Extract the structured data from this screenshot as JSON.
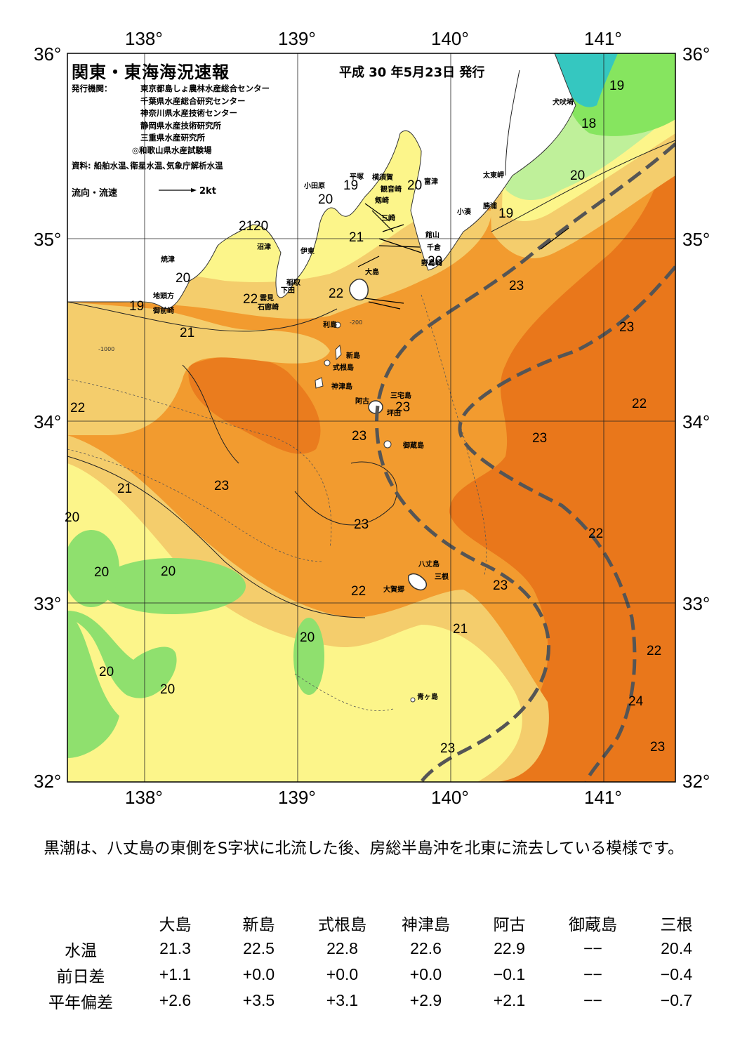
{
  "map": {
    "title": "関東・東海海況速報",
    "issued": "平成 30 年5月23日 発行",
    "agency_label": "発行機関：",
    "agencies": [
      "東京都島しょ農林水産総合センター",
      "千葉県水産総合研究センター",
      "神奈川県水産技術センター",
      "静岡県水産技術研究所",
      "三重県水産研究所",
      "◎和歌山県水産試験場"
    ],
    "sources": "資料: 船舶水温､衛星水温､気象庁解析水温",
    "legend_label": "流向・流速",
    "legend_scale": "2kt",
    "lon_labels": [
      "138°",
      "139°",
      "140°",
      "141°"
    ],
    "lat_labels": [
      "36°",
      "35°",
      "34°",
      "33°",
      "32°"
    ],
    "place_names": [
      "小田原",
      "平塚",
      "横須賀",
      "観音崎",
      "富津",
      "剱崎",
      "三崎",
      "館山",
      "千倉",
      "野島崎",
      "太東岬",
      "勝浦",
      "小湊",
      "犬吠埼",
      "沼津",
      "伊東",
      "焼津",
      "稲取",
      "下田",
      "雲見",
      "石廊崎",
      "地頭方",
      "御前崎",
      "大島",
      "利島",
      "新島",
      "式根島",
      "神津島",
      "三宅島",
      "阿古",
      "坪田",
      "御蔵島",
      "八丈島",
      "三根",
      "大賀郷",
      "青ヶ島"
    ],
    "temperature_labels": [
      "19",
      "18",
      "20",
      "19",
      "20",
      "19",
      "20",
      "21",
      "20",
      "21",
      "20",
      "20",
      "19",
      "22",
      "22",
      "21",
      "23",
      "23",
      "22",
      "23",
      "23",
      "22",
      "23",
      "21",
      "23",
      "23",
      "22",
      "20",
      "20",
      "20",
      "23",
      "22",
      "21",
      "22",
      "20",
      "20",
      "20",
      "24",
      "23",
      "23"
    ],
    "depth_labels": [
      "-200",
      "-1000"
    ],
    "colors": {
      "t18": "#35c7c0",
      "t19": "#86e55f",
      "t20": "#bff09a",
      "t21": "#fcf58a",
      "t22": "#f4cd6c",
      "t23": "#f29b2f",
      "t24": "#e9771b",
      "land": "#ffffff",
      "kuroshio": "#555555"
    }
  },
  "summary": "黒潮は、八丈島の東側をS字状に北流した後、房総半島沖を北東に流去している模様です。",
  "stats": {
    "stations": [
      "大島",
      "新島",
      "式根島",
      "神津島",
      "阿古",
      "御蔵島",
      "三根"
    ],
    "rows": [
      {
        "label": "水温",
        "values": [
          "21.3",
          "22.5",
          "22.8",
          "22.6",
          "22.9",
          "−−",
          "20.4"
        ]
      },
      {
        "label": "前日差",
        "values": [
          "+1.1",
          "+0.0",
          "+0.0",
          "+0.0",
          "−0.1",
          "−−",
          "−0.4"
        ]
      },
      {
        "label": "平年偏差",
        "values": [
          "+2.6",
          "+3.5",
          "+3.1",
          "+2.9",
          "+2.1",
          "−−",
          "−0.7"
        ]
      }
    ]
  }
}
